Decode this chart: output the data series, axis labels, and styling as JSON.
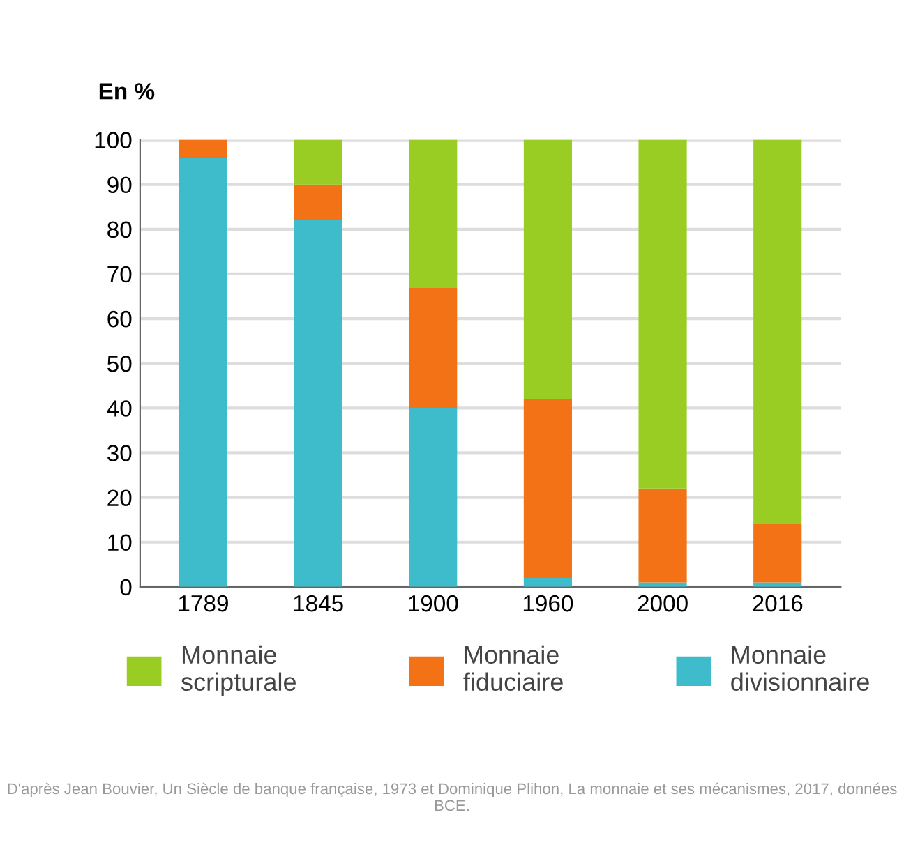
{
  "chart_data": {
    "type": "bar",
    "stacked": true,
    "ylabel": "En %",
    "categories": [
      "1789",
      "1845",
      "1900",
      "1960",
      "2000",
      "2016"
    ],
    "series": [
      {
        "name": "Monnaie\ndivisionnaire",
        "color": "#3fbccb",
        "values": [
          96,
          82,
          40,
          2,
          1,
          1
        ]
      },
      {
        "name": "Monnaie\nfiduciaire",
        "color": "#f47216",
        "values": [
          4,
          8,
          27,
          40,
          21,
          13
        ]
      },
      {
        "name": "Monnaie\nscripturale",
        "color": "#9acd24",
        "values": [
          0,
          10,
          33,
          58,
          78,
          86
        ]
      }
    ],
    "ylim": [
      0,
      100
    ],
    "yticks": [
      0,
      10,
      20,
      30,
      40,
      50,
      60,
      70,
      80,
      90,
      100
    ],
    "grid": "y",
    "legend": "bottom",
    "annotations": [
      "D'après Jean Bouvier, Un Siècle de banque française, 1973 et Dominique Plihon, La monnaie et ses mécanismes, 2017, données BCE."
    ]
  }
}
